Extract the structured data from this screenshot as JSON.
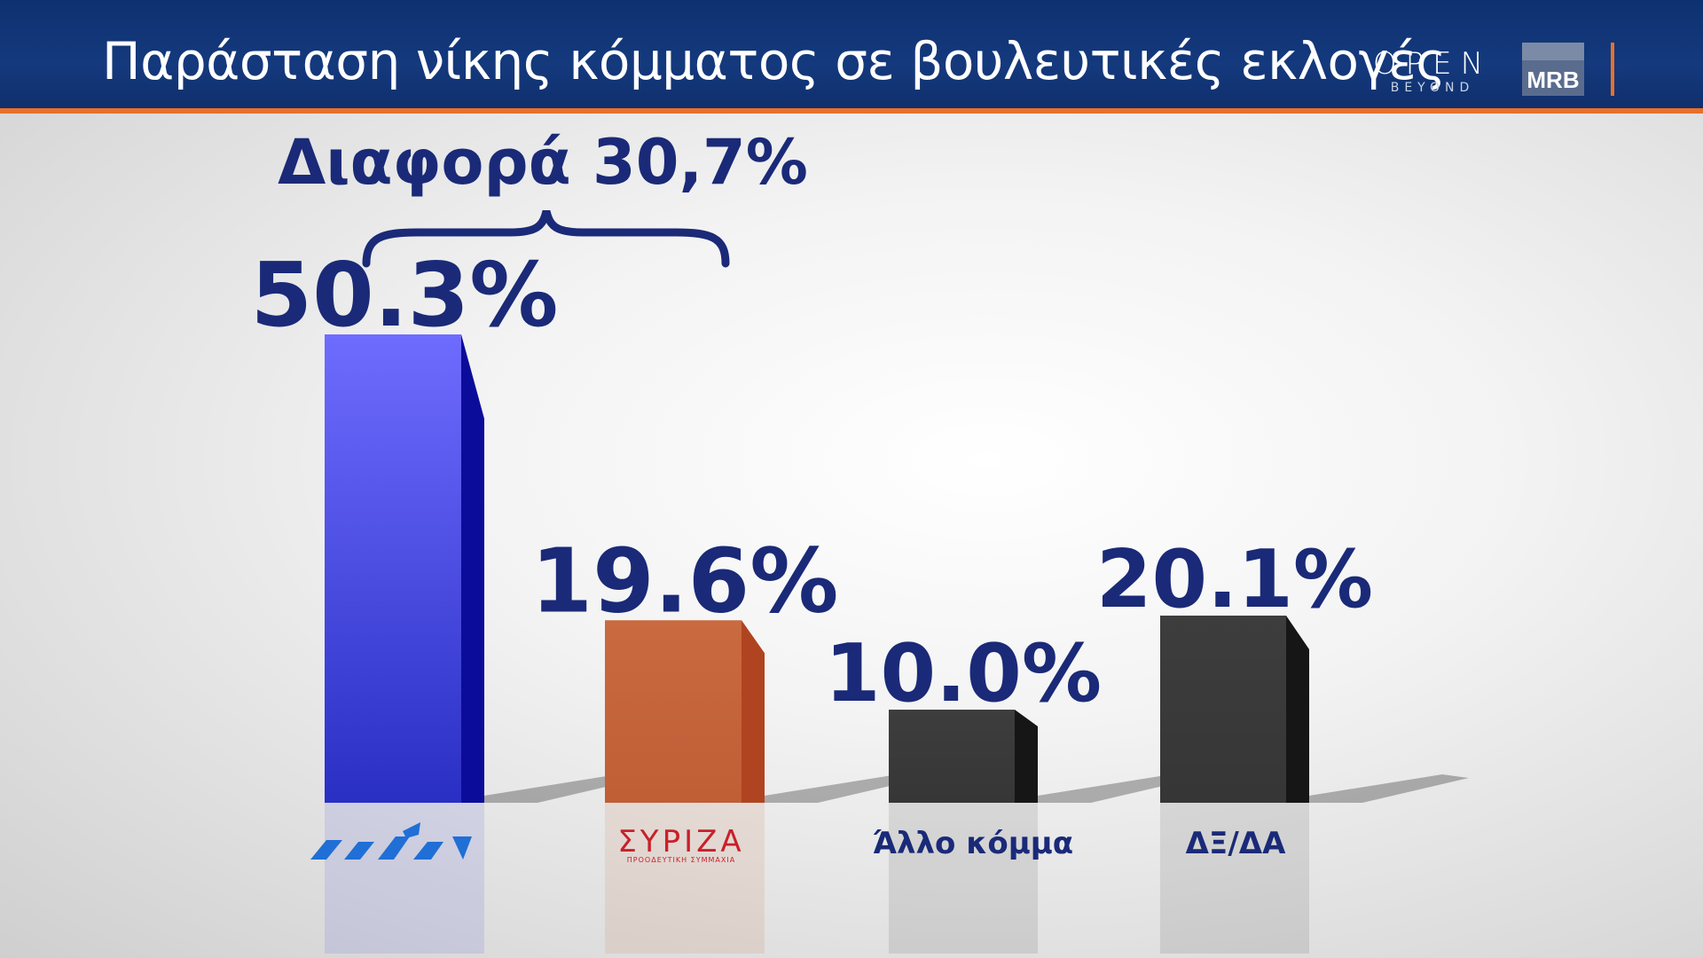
{
  "header": {
    "title": "Παράσταση νίκης κόμματος σε βουλευτικές εκλογές",
    "logo_open": "OPEN",
    "logo_open_sub": "BEYOND",
    "logo_mrb": "MRB"
  },
  "colors": {
    "header_bg": "#14397d",
    "accent": "#e8702a",
    "text_blue": "#1a2a78",
    "nd_blue": "#3a3fd6",
    "syriza_orange": "#c5613a",
    "dark_gray": "#3a3a3a"
  },
  "chart_data": {
    "type": "bar",
    "title": "",
    "categories": [
      "ΝΔ",
      "ΣΥΡΙΖΑ",
      "Άλλο κόμμα",
      "ΔΞ/ΔΑ"
    ],
    "category_labels_shown": [
      "",
      "",
      "Άλλο κόμμα",
      "ΔΞ/ΔΑ"
    ],
    "values": [
      50.3,
      19.6,
      10.0,
      20.1
    ],
    "value_labels": [
      "50.3%",
      "19.6%",
      "10.0%",
      "20.1%"
    ],
    "bar_colors": [
      "#3a3fd6",
      "#c5613a",
      "#3a3a3a",
      "#3a3a3a"
    ],
    "side_colors": [
      "#0c0c9a",
      "#b04420",
      "#161616",
      "#161616"
    ],
    "ylim": [
      0,
      55
    ],
    "annotation": {
      "text": "Διαφορά 30,7%",
      "between": [
        "ΝΔ",
        "ΣΥΡΙΖΑ"
      ]
    },
    "logos": {
      "syriza_word": "ΣΥΡΙΖΑ",
      "syriza_sub": "ΠΡΟΟΔΕΥΤΙΚΗ ΣΥΜΜΑΧΙΑ"
    }
  }
}
